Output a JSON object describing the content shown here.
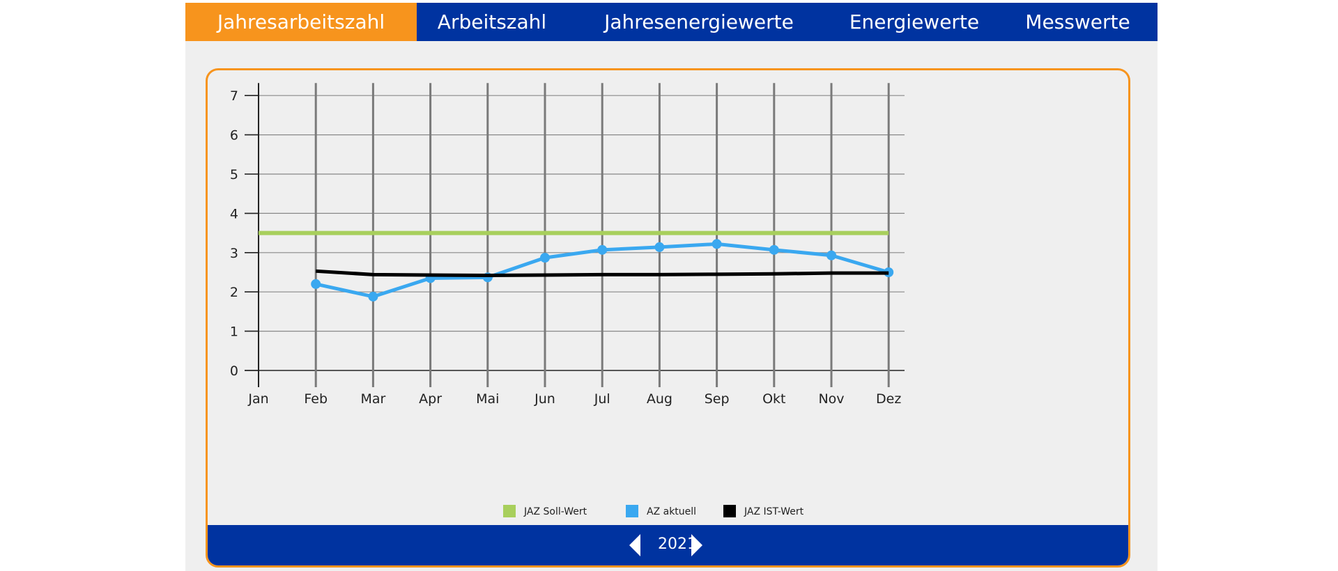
{
  "tabs": [
    {
      "label": "Jahresarbeitszahl",
      "active": true
    },
    {
      "label": "Arbeitszahl",
      "active": false
    },
    {
      "label": "Jahresenergiewerte",
      "active": false
    },
    {
      "label": "Energiewerte",
      "active": false
    },
    {
      "label": "Messwerte",
      "active": false
    }
  ],
  "year_selector": {
    "value": "2021"
  },
  "colors": {
    "brand_blue": "#0033a0",
    "accent_orange": "#f7941d",
    "soll": "#a8cf5c",
    "az": "#3aa8f0",
    "ist": "#000000"
  },
  "chart_data": {
    "type": "line",
    "categories": [
      "Jan",
      "Feb",
      "Mar",
      "Apr",
      "Mai",
      "Jun",
      "Jul",
      "Aug",
      "Sep",
      "Okt",
      "Nov",
      "Dez"
    ],
    "ylim": [
      0,
      7
    ],
    "yticks": [
      0,
      1,
      2,
      3,
      4,
      5,
      6,
      7
    ],
    "grid": true,
    "legend_position": "bottom-center",
    "series": [
      {
        "name": "JAZ Soll-Wert",
        "color": "#a8cf5c",
        "markers": false,
        "values": [
          3.5,
          3.5,
          3.5,
          3.5,
          3.5,
          3.5,
          3.5,
          3.5,
          3.5,
          3.5,
          3.5,
          3.5
        ]
      },
      {
        "name": "AZ aktuell",
        "color": "#3aa8f0",
        "markers": true,
        "values": [
          null,
          2.2,
          1.88,
          2.35,
          2.37,
          2.87,
          3.07,
          3.14,
          3.22,
          3.07,
          2.93,
          2.5
        ]
      },
      {
        "name": "JAZ IST-Wert",
        "color": "#000000",
        "markers": false,
        "values": [
          null,
          2.53,
          2.44,
          2.43,
          2.42,
          2.43,
          2.44,
          2.44,
          2.45,
          2.46,
          2.48,
          2.48
        ]
      }
    ]
  }
}
